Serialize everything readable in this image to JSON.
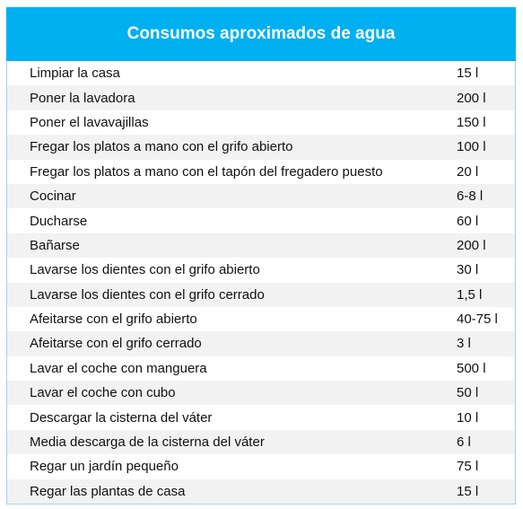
{
  "table": {
    "title": "Consumos aproximados de agua",
    "rows": [
      [
        "Limpiar la casa",
        "15 l"
      ],
      [
        "Poner la lavadora",
        "200 l"
      ],
      [
        "Poner el lavavajillas",
        "150 l"
      ],
      [
        "Fregar los platos a mano con el grifo abierto",
        "100 l"
      ],
      [
        "Fregar los platos a mano con el tapón del fregadero puesto",
        "20 l"
      ],
      [
        "Cocinar",
        "6-8 l"
      ],
      [
        "Ducharse",
        "60 l"
      ],
      [
        "Bañarse",
        "200 l"
      ],
      [
        "Lavarse los dientes con el grifo abierto",
        "30 l"
      ],
      [
        "Lavarse los dientes con el grifo cerrado",
        "1,5 l"
      ],
      [
        "Afeitarse con el grifo abierto",
        "40-75 l"
      ],
      [
        "Afeitarse con el grifo cerrado",
        "3 l"
      ],
      [
        "Lavar el coche con manguera",
        "500 l"
      ],
      [
        "Lavar el coche con cubo",
        "50 l"
      ],
      [
        "Descargar la cisterna del váter",
        "10 l"
      ],
      [
        "Media descarga de la cisterna del váter",
        "6 l"
      ],
      [
        "Regar un jardín pequeño",
        "75 l"
      ],
      [
        "Regar las plantas de casa",
        "15 l"
      ]
    ]
  }
}
